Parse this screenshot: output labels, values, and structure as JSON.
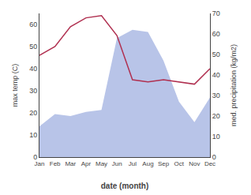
{
  "chart_data": {
    "type": "line",
    "categories": [
      "Jan",
      "Feb",
      "Mar",
      "Apr",
      "May",
      "Jun",
      "Jul",
      "Aug",
      "Sep",
      "Oct",
      "Nov",
      "Dec"
    ],
    "series": [
      {
        "type": "area",
        "color": "#b8c4e8",
        "axis": "y2",
        "values": [
          15,
          21,
          20,
          22,
          23,
          58,
          62,
          61,
          47,
          27,
          17,
          29
        ]
      },
      {
        "type": "line",
        "color": "#b03050",
        "values": [
          46,
          50,
          59,
          63,
          64,
          55,
          35,
          34,
          35,
          34,
          33,
          40
        ]
      }
    ],
    "xlabel": "date (month)",
    "ylabel": "max temp (C)",
    "y2label": "med. precipitation (kg/m2)",
    "ylim": [
      0,
      65
    ],
    "yticks": [
      0,
      10,
      20,
      30,
      40,
      50,
      60
    ],
    "y2lim": [
      0,
      70
    ],
    "y2ticks": [
      0,
      10,
      20,
      30,
      40,
      50,
      60,
      70
    ],
    "grid": false
  }
}
